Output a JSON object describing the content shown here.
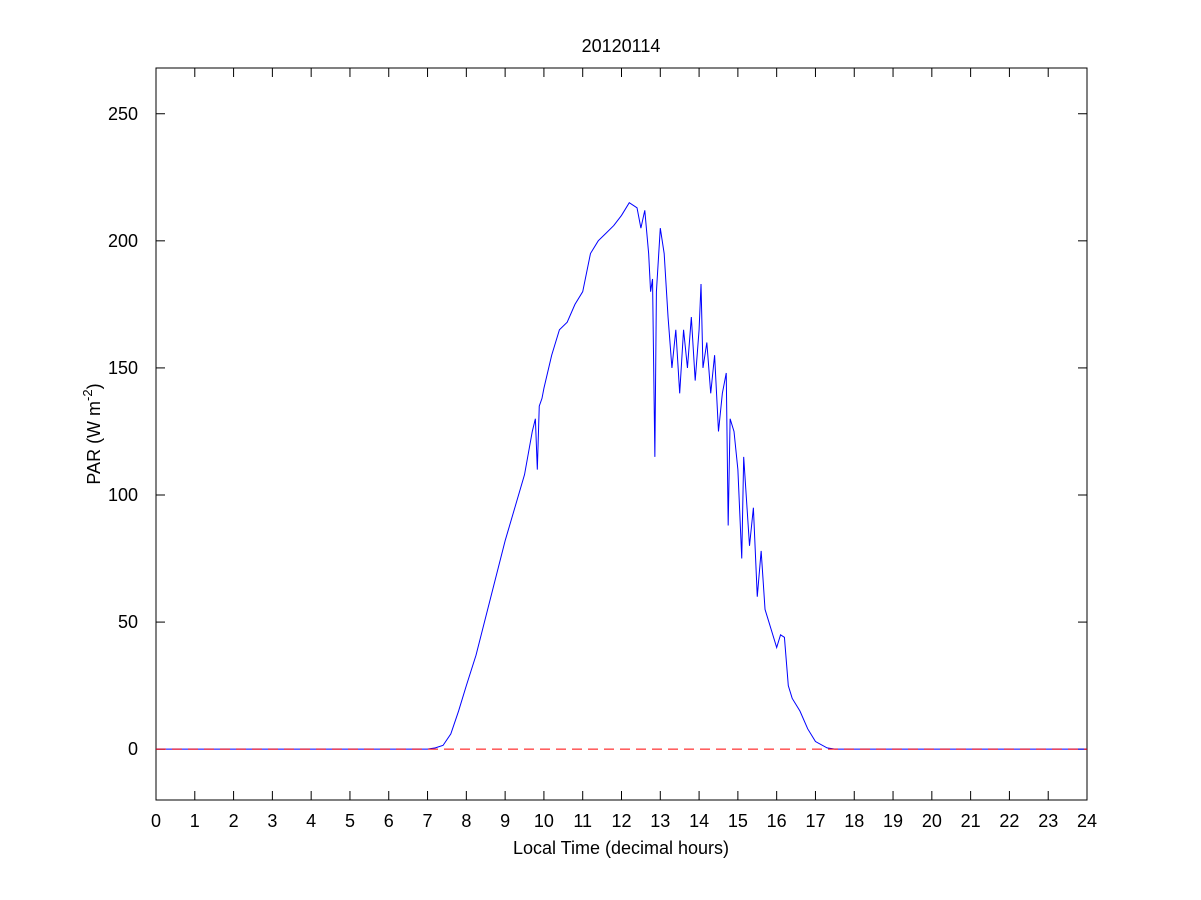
{
  "chart_data": {
    "type": "line",
    "title": "20120114",
    "xlabel": "Local Time (decimal hours)",
    "ylabel": {
      "text": "PAR (W m",
      "superscript": "-2",
      "suffix": ")"
    },
    "xlim": [
      0,
      24
    ],
    "ylim": [
      -20,
      268
    ],
    "xticks": [
      0,
      1,
      2,
      3,
      4,
      5,
      6,
      7,
      8,
      9,
      10,
      11,
      12,
      13,
      14,
      15,
      16,
      17,
      18,
      19,
      20,
      21,
      22,
      23,
      24
    ],
    "yticks": [
      0,
      50,
      100,
      150,
      200,
      250
    ],
    "reference_line": {
      "value": 0,
      "color": "#ff0000",
      "style": "dashed"
    },
    "series": [
      {
        "color": "#0000ff",
        "x": [
          0,
          7.0,
          7.2,
          7.4,
          7.6,
          7.8,
          8.0,
          8.25,
          8.5,
          8.75,
          9.0,
          9.25,
          9.5,
          9.7,
          9.78,
          9.83,
          9.88,
          9.95,
          10.0,
          10.2,
          10.4,
          10.6,
          10.8,
          11.0,
          11.2,
          11.4,
          11.6,
          11.8,
          12.0,
          12.2,
          12.4,
          12.5,
          12.6,
          12.7,
          12.75,
          12.8,
          12.86,
          12.9,
          13.0,
          13.1,
          13.2,
          13.3,
          13.4,
          13.5,
          13.6,
          13.7,
          13.8,
          13.9,
          14.0,
          14.05,
          14.1,
          14.2,
          14.3,
          14.4,
          14.5,
          14.6,
          14.7,
          14.75,
          14.8,
          14.9,
          15.0,
          15.1,
          15.15,
          15.3,
          15.4,
          15.5,
          15.6,
          15.7,
          15.8,
          15.9,
          16.0,
          16.1,
          16.2,
          16.3,
          16.4,
          16.6,
          16.8,
          17.0,
          17.3,
          17.5,
          24
        ],
        "values": [
          0,
          0,
          0.5,
          1.5,
          6,
          15,
          25,
          37,
          52,
          67,
          82,
          95,
          108,
          125,
          130,
          110,
          135,
          138,
          142,
          155,
          165,
          168,
          175,
          180,
          195,
          200,
          203,
          206,
          210,
          215,
          213,
          205,
          212,
          195,
          180,
          185,
          115,
          180,
          205,
          195,
          170,
          150,
          165,
          140,
          165,
          150,
          170,
          145,
          165,
          183,
          150,
          160,
          140,
          155,
          125,
          140,
          148,
          88,
          130,
          125,
          110,
          75,
          115,
          80,
          95,
          60,
          78,
          55,
          50,
          45,
          40,
          45,
          44,
          25,
          20,
          15,
          8,
          3,
          0.5,
          0,
          0
        ]
      }
    ]
  }
}
